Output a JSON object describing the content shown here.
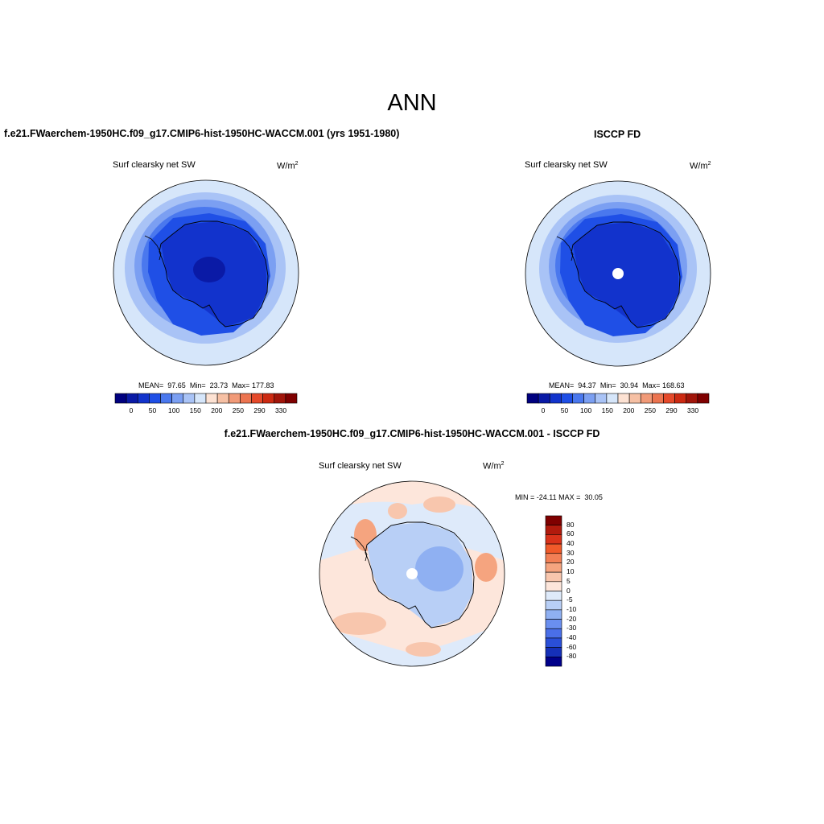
{
  "figure": {
    "season": "ANN",
    "left_panel": {
      "title": "f.e21.FWaerchem-1950HC.f09_g17.CMIP6-hist-1950HC-WACCM.001 (yrs 1951-1980)",
      "variable": "Surf clearsky net SW",
      "units": "W/m",
      "units_exp": "2",
      "stats": {
        "mean_label": "MEAN=",
        "mean": "97.65",
        "min_label": "Min=",
        "min": "23.73",
        "max_label": "Max=",
        "max": "177.83"
      }
    },
    "right_panel": {
      "title": "ISCCP FD",
      "variable": "Surf clearsky net SW",
      "units": "W/m",
      "units_exp": "2",
      "stats": {
        "mean_label": "MEAN=",
        "mean": "94.37",
        "min_label": "Min=",
        "min": "30.94",
        "max_label": "Max=",
        "max": "168.63"
      }
    },
    "diff_panel": {
      "title": "f.e21.FWaerchem-1950HC.f09_g17.CMIP6-hist-1950HC-WACCM.001 - ISCCP FD",
      "variable": "Surf clearsky net SW",
      "units": "W/m",
      "units_exp": "2",
      "minmax_text": "MIN = -24.11 MAX =  30.05"
    },
    "abs_colorbar": {
      "colors": [
        "#00007f",
        "#0a1aa6",
        "#1233cc",
        "#1f4fe6",
        "#4a78ee",
        "#7b9ff2",
        "#a9c3f6",
        "#d6e6fa",
        "#fde2d3",
        "#f6c0a4",
        "#f19a78",
        "#ec7450",
        "#e5492a",
        "#cc2a12",
        "#a1150a",
        "#7f0000"
      ],
      "tick_labels": [
        "0",
        "50",
        "100",
        "150",
        "200",
        "250",
        "290",
        "330"
      ]
    },
    "diff_colorbar": {
      "colors": [
        "#7f0000",
        "#b11a0d",
        "#d9321a",
        "#f05a2a",
        "#f27f55",
        "#f5a47f",
        "#f8c6ad",
        "#fde6db",
        "#deeafa",
        "#b8cff6",
        "#8fb0f2",
        "#6a8ff0",
        "#4a6fe8",
        "#2a4fd8",
        "#1530b8",
        "#00008a"
      ],
      "tick_labels": [
        "80",
        "60",
        "40",
        "30",
        "20",
        "10",
        "5",
        "0",
        "-5",
        "-10",
        "-20",
        "-30",
        "-40",
        "-60",
        "-80"
      ]
    },
    "map_colors": {
      "abs": [
        "#d6e6fa",
        "#a9c3f6",
        "#7b9ff2",
        "#4a78ee",
        "#1f4fe6",
        "#1233cc",
        "#0a1aa6"
      ],
      "diff_neutral": "#fde6db",
      "diff_blue": "#deeafa",
      "diff_red": "#f5a47f",
      "land_blue": "#b8cff6",
      "land_blue2": "#8fb0f2",
      "missing": "#ffffff"
    },
    "chart_data": [
      {
        "type": "heatmap",
        "title": "f.e21.FWaerchem-1950HC.f09_g17.CMIP6-hist-1950HC-WACCM.001 (yrs 1951-1980)",
        "variable": "Surf clearsky net SW",
        "units": "W/m2",
        "projection": "south polar stereographic",
        "stats": {
          "mean": 97.65,
          "min": 23.73,
          "max": 177.83
        },
        "contour_levels": [
          0,
          50,
          100,
          150,
          200,
          250,
          290,
          330
        ]
      },
      {
        "type": "heatmap",
        "title": "ISCCP FD",
        "variable": "Surf clearsky net SW",
        "units": "W/m2",
        "projection": "south polar stereographic",
        "stats": {
          "mean": 94.37,
          "min": 30.94,
          "max": 168.63
        },
        "contour_levels": [
          0,
          50,
          100,
          150,
          200,
          250,
          290,
          330
        ]
      },
      {
        "type": "heatmap",
        "title": "f.e21.FWaerchem-1950HC.f09_g17.CMIP6-hist-1950HC-WACCM.001 - ISCCP FD",
        "variable": "Surf clearsky net SW",
        "units": "W/m2",
        "projection": "south polar stereographic",
        "stats": {
          "min": -24.11,
          "max": 30.05
        },
        "contour_levels": [
          -80,
          -60,
          -40,
          -30,
          -20,
          -10,
          -5,
          0,
          5,
          10,
          20,
          30,
          40,
          60,
          80
        ]
      }
    ]
  }
}
